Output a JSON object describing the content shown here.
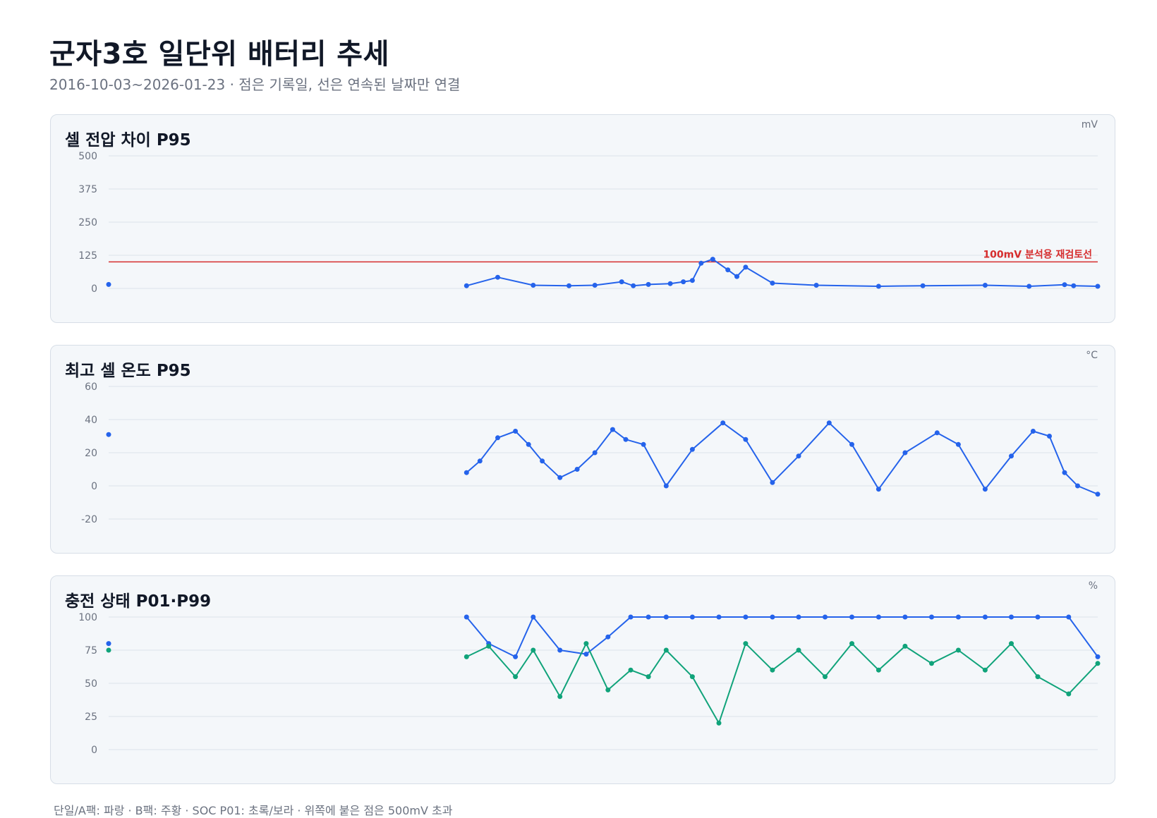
{
  "title": "군자3호 일단위 배터리 추세",
  "subtitle": "2016-10-03~2026-01-23 · 점은 기록일, 선은 연속된 날짜만 연결",
  "footer": "단일/A팩: 파랑 · B팩: 주황 · SOC P01: 초록/보라 · 위쪽에 붙은 점은 500mV 초과",
  "colors": {
    "series_a": "#2563eb",
    "soc_p01": "#10a37a",
    "threshold": "#d62d2d",
    "grid": "#dde3ea",
    "tick": "#6b7280"
  },
  "chart_data": [
    {
      "type": "line",
      "title": "셀 전압 차이 P95",
      "unit": "mV",
      "xlim": [
        "2016-10-03",
        "2026-01-23"
      ],
      "ylim": [
        0,
        500
      ],
      "yticks": [
        0,
        125,
        250,
        375,
        500
      ],
      "grid": true,
      "threshold": {
        "value": 100,
        "label": "100mV 분석용 재검토선"
      },
      "series": [
        {
          "x": [
            "2016-10-03",
            "2020-02-15",
            "2020-06-01",
            "2020-10-01",
            "2021-02-01",
            "2021-05-01",
            "2021-08-01",
            "2021-09-10",
            "2021-11-01",
            "2022-01-15",
            "2022-03-01",
            "2022-04-01",
            "2022-05-01",
            "2022-06-10",
            "2022-08-01",
            "2022-09-01",
            "2022-10-01",
            "2023-01-01",
            "2023-06-01",
            "2024-01-01",
            "2024-06-01",
            "2025-01-01",
            "2025-06-01",
            "2025-10-01",
            "2025-11-01",
            "2026-01-23"
          ],
          "values": [
            15,
            10,
            42,
            12,
            10,
            12,
            25,
            10,
            15,
            18,
            25,
            30,
            95,
            110,
            70,
            45,
            80,
            20,
            12,
            8,
            10,
            12,
            8,
            14,
            10,
            8
          ]
        }
      ]
    },
    {
      "type": "line",
      "title": "최고 셀 온도 P95",
      "unit": "°C",
      "xlim": [
        "2016-10-03",
        "2026-01-23"
      ],
      "ylim": [
        -20,
        60
      ],
      "yticks": [
        -20,
        0,
        20,
        40,
        60
      ],
      "grid": true,
      "series": [
        {
          "x": [
            "2016-10-03",
            "2020-02-15",
            "2020-04-01",
            "2020-06-01",
            "2020-08-01",
            "2020-09-15",
            "2020-11-01",
            "2021-01-01",
            "2021-03-01",
            "2021-05-01",
            "2021-07-01",
            "2021-08-15",
            "2021-10-15",
            "2022-01-01",
            "2022-04-01",
            "2022-07-15",
            "2022-10-01",
            "2023-01-01",
            "2023-04-01",
            "2023-07-15",
            "2023-10-01",
            "2024-01-01",
            "2024-04-01",
            "2024-07-20",
            "2024-10-01",
            "2025-01-01",
            "2025-04-01",
            "2025-06-15",
            "2025-08-10",
            "2025-10-01",
            "2025-11-15",
            "2026-01-23"
          ],
          "values": [
            31,
            8,
            15,
            29,
            33,
            25,
            15,
            5,
            10,
            20,
            34,
            28,
            25,
            0,
            22,
            38,
            28,
            2,
            18,
            38,
            25,
            -2,
            20,
            32,
            25,
            -2,
            18,
            33,
            30,
            8,
            0,
            -5
          ]
        }
      ]
    },
    {
      "type": "line",
      "title": "충전 상태 P01·P99",
      "unit": "%",
      "xlim": [
        "2016-10-03",
        "2026-01-23"
      ],
      "ylim": [
        0,
        100
      ],
      "yticks": [
        0,
        25,
        50,
        75,
        100
      ],
      "grid": true,
      "series": [
        {
          "name": "P99",
          "x": [
            "2016-10-03",
            "2020-02-15",
            "2020-05-01",
            "2020-08-01",
            "2020-10-01",
            "2021-01-01",
            "2021-04-01",
            "2021-06-15",
            "2021-09-01",
            "2021-11-01",
            "2022-01-01",
            "2022-04-01",
            "2022-07-01",
            "2022-10-01",
            "2023-01-01",
            "2023-04-01",
            "2023-07-01",
            "2023-10-01",
            "2024-01-01",
            "2024-04-01",
            "2024-07-01",
            "2024-10-01",
            "2025-01-01",
            "2025-04-01",
            "2025-07-01",
            "2025-10-15",
            "2026-01-23"
          ],
          "values": [
            80,
            100,
            80,
            70,
            100,
            75,
            72,
            85,
            100,
            100,
            100,
            100,
            100,
            100,
            100,
            100,
            100,
            100,
            100,
            100,
            100,
            100,
            100,
            100,
            100,
            100,
            70
          ]
        },
        {
          "name": "P01",
          "x": [
            "2016-10-03",
            "2020-02-15",
            "2020-05-01",
            "2020-08-01",
            "2020-10-01",
            "2021-01-01",
            "2021-04-01",
            "2021-06-15",
            "2021-09-01",
            "2021-11-01",
            "2022-01-01",
            "2022-04-01",
            "2022-07-01",
            "2022-10-01",
            "2023-01-01",
            "2023-04-01",
            "2023-07-01",
            "2023-10-01",
            "2024-01-01",
            "2024-04-01",
            "2024-07-01",
            "2024-10-01",
            "2025-01-01",
            "2025-04-01",
            "2025-07-01",
            "2025-10-15",
            "2026-01-23"
          ],
          "values": [
            75,
            70,
            78,
            55,
            75,
            40,
            80,
            45,
            60,
            55,
            75,
            55,
            20,
            80,
            60,
            75,
            55,
            80,
            60,
            78,
            65,
            75,
            60,
            80,
            55,
            42,
            65
          ]
        }
      ]
    }
  ]
}
